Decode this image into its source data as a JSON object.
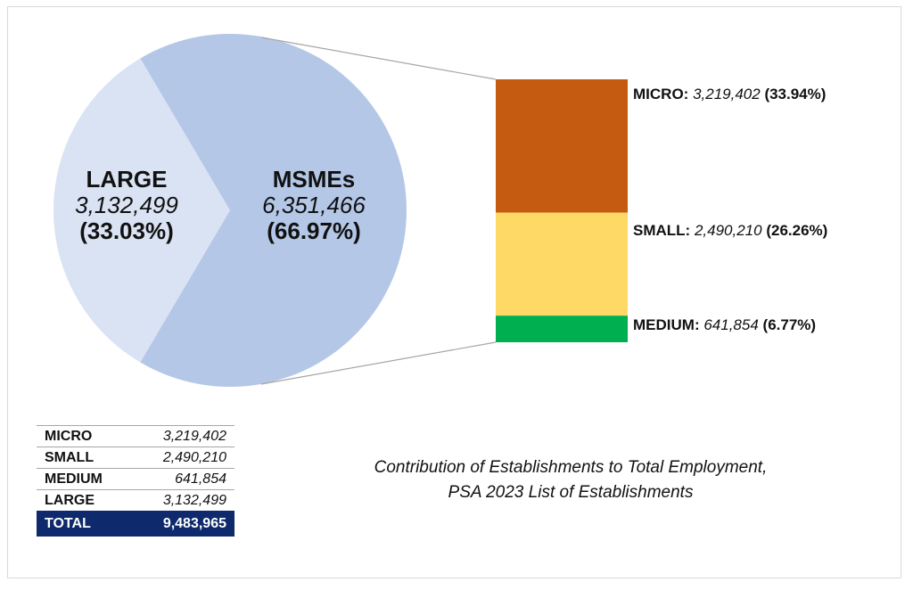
{
  "chart_data": {
    "type": "pie",
    "title": "Contribution of Establishments to Total Employment,",
    "subtitle": "PSA 2023 List of Establishments",
    "pie": {
      "slices": [
        {
          "name": "LARGE",
          "value": 3132499,
          "value_label": "3,132,499",
          "percent": 33.03,
          "percent_label": "(33.03%)",
          "color": "#DAE3F3"
        },
        {
          "name": "MSMEs",
          "value": 6351466,
          "value_label": "6,351,466",
          "percent": 66.97,
          "percent_label": "(66.97%)",
          "color": "#B4C7E7"
        }
      ]
    },
    "breakdown": {
      "type": "stacked-bar",
      "of": "MSMEs",
      "segments": [
        {
          "name": "MICRO:",
          "value": 3219402,
          "value_label": "3,219,402",
          "percent": 33.94,
          "percent_label": "(33.94%)",
          "color": "#C55A11"
        },
        {
          "name": "SMALL:",
          "value": 2490210,
          "value_label": "2,490,210",
          "percent": 26.26,
          "percent_label": "(26.26%)",
          "color": "#FFD966"
        },
        {
          "name": "MEDIUM:",
          "value": 641854,
          "value_label": "641,854",
          "percent": 6.77,
          "percent_label": "(6.77%)",
          "color": "#00B050"
        }
      ]
    },
    "table": {
      "rows": [
        {
          "label": "MICRO",
          "value": "3,219,402"
        },
        {
          "label": "SMALL",
          "value": "2,490,210"
        },
        {
          "label": "MEDIUM",
          "value": "641,854"
        },
        {
          "label": "LARGE",
          "value": "3,132,499"
        }
      ],
      "total": {
        "label": "TOTAL",
        "value": "9,483,965"
      }
    },
    "connector_color": "#A6A6A6"
  }
}
